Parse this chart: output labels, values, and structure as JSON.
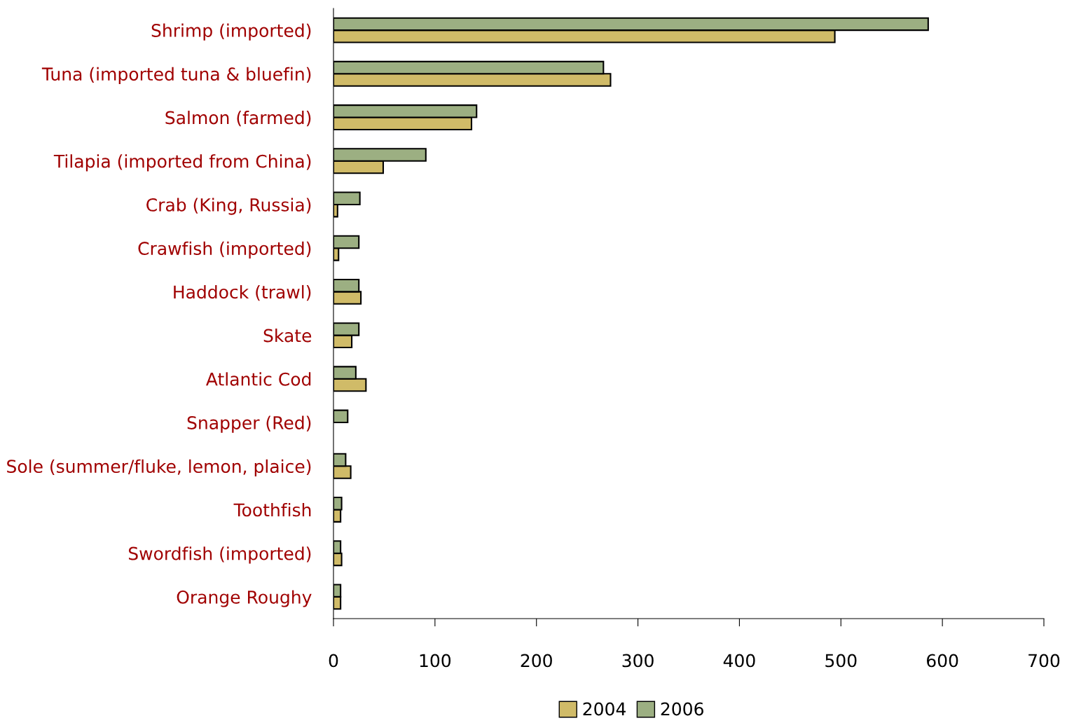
{
  "chart_data": {
    "type": "bar",
    "orientation": "horizontal",
    "categories": [
      "Shrimp (imported)",
      "Tuna (imported tuna & bluefin)",
      "Salmon (farmed)",
      "Tilapia (imported from China)",
      "Crab (King, Russia)",
      "Crawfish (imported)",
      "Haddock (trawl)",
      "Skate",
      "Atlantic Cod",
      "Snapper (Red)",
      "Sole (summer/fluke, lemon, plaice)",
      "Toothfish",
      "Swordfish (imported)",
      "Orange Roughy"
    ],
    "series": [
      {
        "name": "2004",
        "color": "#d0bb68",
        "values": [
          494,
          273,
          136,
          49,
          4,
          5,
          27,
          18,
          32,
          null,
          17,
          7,
          8,
          7
        ]
      },
      {
        "name": "2006",
        "color": "#9caf82",
        "values": [
          586,
          266,
          141,
          91,
          26,
          25,
          25,
          25,
          22,
          14,
          12,
          8,
          7,
          7
        ]
      }
    ],
    "xlim": [
      0,
      700
    ],
    "xticks": [
      0,
      100,
      200,
      300,
      400,
      500,
      600,
      700
    ],
    "grid": false,
    "legend": "bottom"
  }
}
